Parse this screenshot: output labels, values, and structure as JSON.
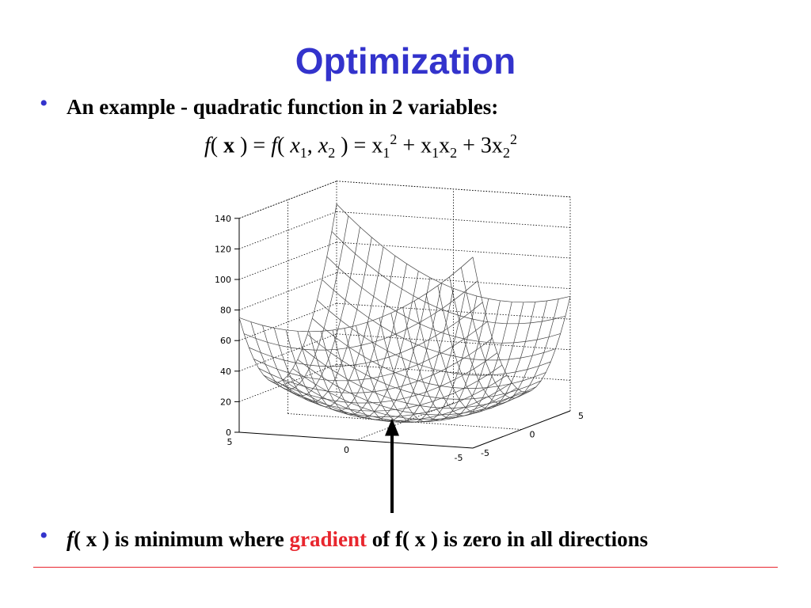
{
  "slide": {
    "title": "Optimization",
    "bullet1_text": "An example - quadratic function in 2 variables:",
    "formula": {
      "f1": "f",
      "open1": "( ",
      "x_bold": "x",
      "close_eq": " ) = ",
      "f2": "f",
      "open2": "( ",
      "x1": "x",
      "sub1": "1",
      "comma": ", ",
      "x2": "x",
      "sub2": "2",
      "rhs_start": " ) = x",
      "rhs_sub1": "1",
      "rhs_sup1": "2",
      "rhs_mid": " + x",
      "rhs_sub2": "1",
      "rhs_x2": "x",
      "rhs_sub3": "2",
      "rhs_plus": " + 3x",
      "rhs_sub4": "2",
      "rhs_sup2": "2"
    },
    "bullet2": {
      "f": "f",
      "part1": "( x ) is minimum where ",
      "highlight": "gradient",
      "part2": " of f( x ) is zero in all directions"
    },
    "colors": {
      "title": "#3333cc",
      "bullet": "#3333cc",
      "highlight": "#e8262e",
      "rule": "#e8262e"
    },
    "bullet_icon": "bullet-dot"
  },
  "surface_plot": {
    "function": "x1^2 + x1*x2 + 3*x2^2",
    "z_ticks": [
      "0",
      "20",
      "40",
      "60",
      "80",
      "100",
      "120",
      "140"
    ],
    "x1_ticks": [
      "5",
      "0",
      "-5"
    ],
    "x2_ticks": [
      "-5",
      "0",
      "5"
    ],
    "x_range": [
      -5,
      5
    ],
    "y_range": [
      -5,
      5
    ],
    "z_range": [
      0,
      140
    ],
    "grid": true,
    "arrow": "pointing-up-at-minimum"
  }
}
